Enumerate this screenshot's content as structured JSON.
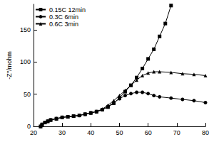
{
  "chart_data": {
    "type": "line",
    "y_label": "-Z''/mohm",
    "xlim": [
      20,
      80
    ],
    "xticks": [
      20,
      30,
      40,
      50,
      60,
      70,
      80
    ],
    "ylim": [
      0,
      190
    ],
    "yticks": [
      0,
      50,
      100,
      150
    ],
    "grid": false,
    "legend": "upper left",
    "series": [
      {
        "name": "0.15C 12min",
        "color": "#000000",
        "marker": "square",
        "x": [
          22.5,
          23,
          24,
          25,
          26,
          28,
          30,
          32,
          34,
          36,
          38,
          40,
          42,
          44,
          46,
          48,
          50,
          52,
          54,
          56,
          58,
          60,
          62,
          64,
          66,
          68
        ],
        "values": [
          0,
          3,
          6,
          8,
          10,
          12,
          14,
          15,
          16,
          17,
          19,
          21,
          23,
          26,
          30,
          36,
          44,
          54,
          64,
          76,
          90,
          105,
          120,
          140,
          160,
          188
        ]
      },
      {
        "name": "0.3C 6min",
        "color": "#000000",
        "marker": "circle",
        "x": [
          22.5,
          23,
          24,
          25,
          26,
          28,
          30,
          32,
          34,
          36,
          38,
          40,
          42,
          44,
          46,
          48,
          50,
          52,
          54,
          56,
          58,
          60,
          62,
          64,
          68,
          72,
          76,
          80
        ],
        "values": [
          0,
          3,
          6,
          8,
          10,
          12,
          14,
          15,
          16,
          17,
          19,
          21,
          23,
          26,
          31,
          37,
          43,
          48,
          51,
          53,
          53,
          51,
          48,
          46,
          44,
          42,
          40,
          37
        ]
      },
      {
        "name": "0.6C 3min",
        "color": "#000000",
        "marker": "triangle",
        "x": [
          22.5,
          23,
          24,
          25,
          26,
          28,
          30,
          32,
          34,
          36,
          38,
          40,
          42,
          44,
          46,
          48,
          50,
          52,
          54,
          56,
          58,
          60,
          62,
          64,
          68,
          72,
          76,
          80
        ],
        "values": [
          0,
          3,
          6,
          8,
          10,
          12,
          14,
          15,
          16,
          17,
          19,
          21,
          23,
          27,
          33,
          40,
          48,
          56,
          64,
          72,
          79,
          83,
          85,
          85,
          84,
          82,
          81,
          79
        ]
      }
    ]
  }
}
